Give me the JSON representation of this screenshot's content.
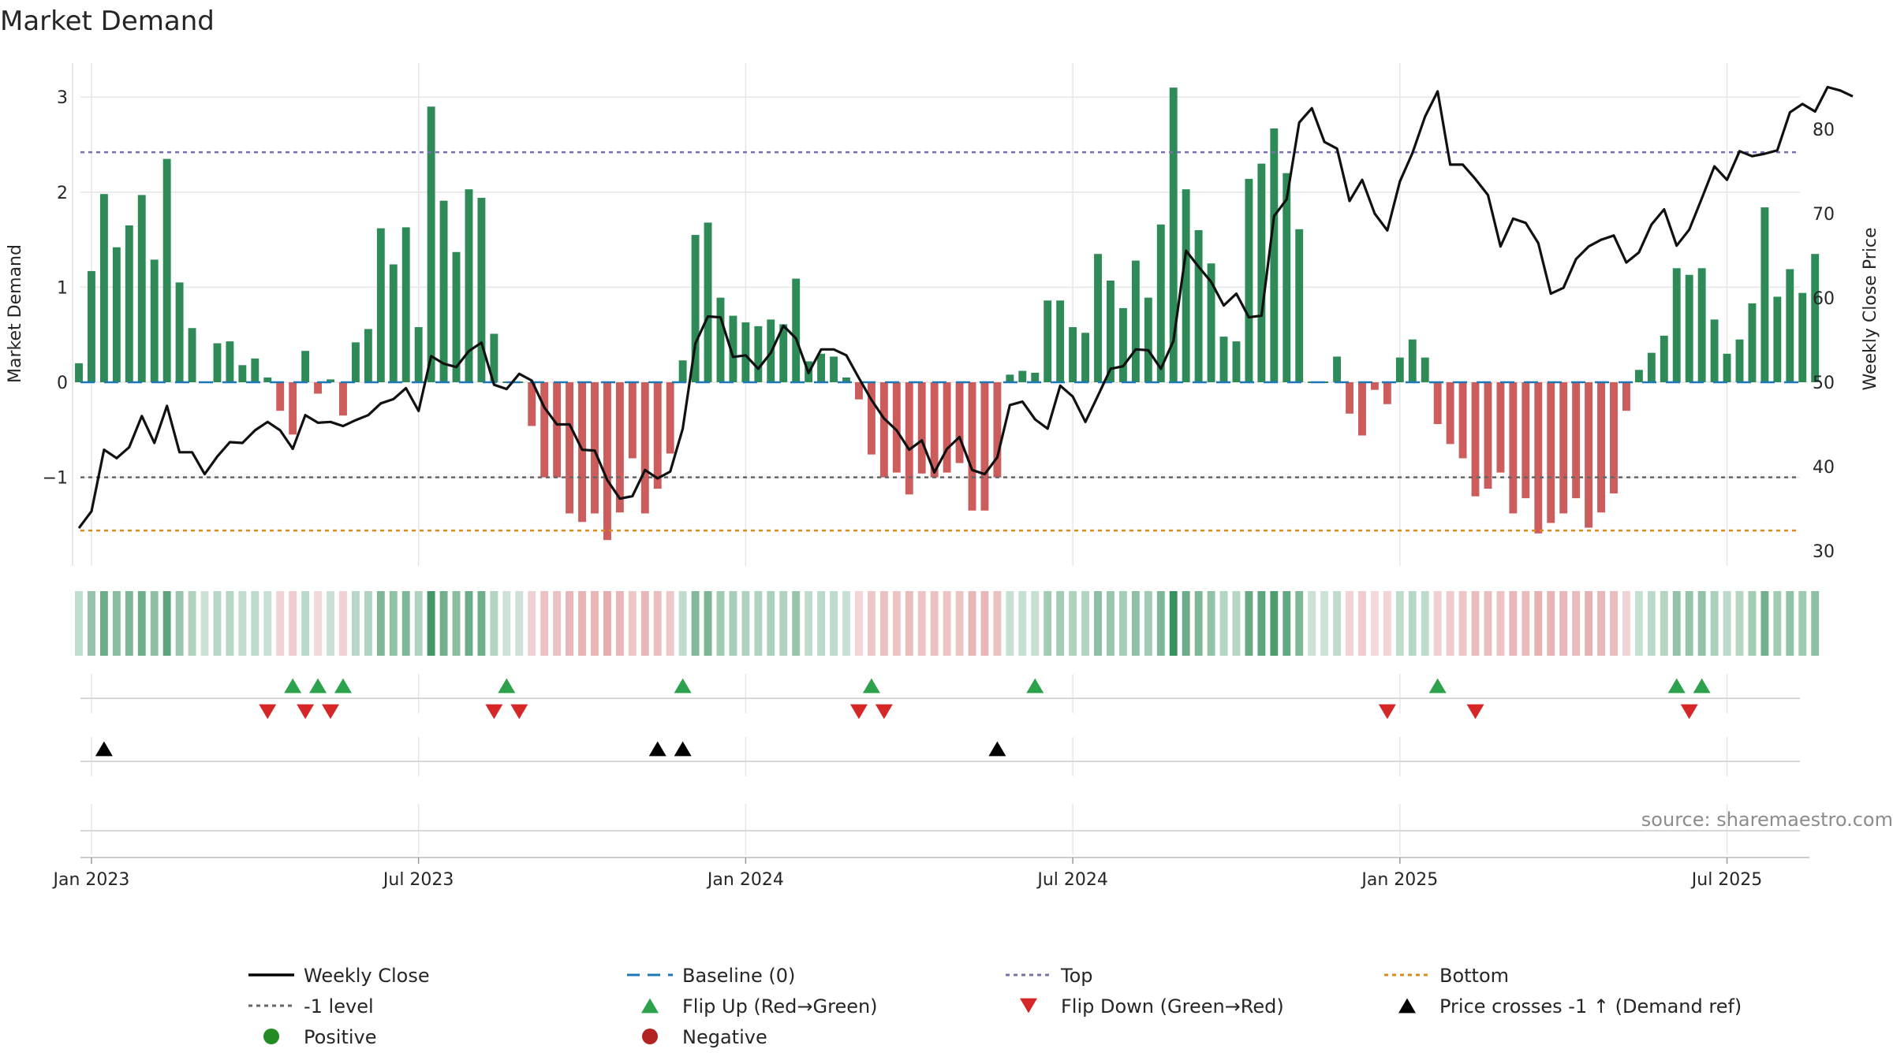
{
  "chart_data": {
    "type": "bar+line",
    "title": "Market Demand",
    "ylabel_left": "Market Demand",
    "ylabel_right": "Weekly Close Price",
    "ylim_left": [
      -2.0,
      3.4
    ],
    "ylim_right": [
      29.2,
      88.5
    ],
    "left_ticks": [
      {
        "v": 3,
        "label": "3"
      },
      {
        "v": 2,
        "label": "2"
      },
      {
        "v": 1,
        "label": "1"
      },
      {
        "v": 0,
        "label": "0"
      },
      {
        "v": -1,
        "label": "−1"
      }
    ],
    "right_ticks": [
      {
        "v": 80,
        "label": "80"
      },
      {
        "v": 70,
        "label": "70"
      },
      {
        "v": 60,
        "label": "60"
      },
      {
        "v": 50,
        "label": "50"
      },
      {
        "v": 40,
        "label": "40"
      },
      {
        "v": 30,
        "label": "30"
      }
    ],
    "x_ticks": [
      {
        "i": 1,
        "label": "Jan 2023"
      },
      {
        "i": 27,
        "label": "Jul 2023"
      },
      {
        "i": 53,
        "label": "Jan 2024"
      },
      {
        "i": 79,
        "label": "Jul 2024"
      },
      {
        "i": 105,
        "label": "Jan 2025"
      },
      {
        "i": 131,
        "label": "Jul 2025"
      }
    ],
    "reference_levels": {
      "top": 2.42,
      "minus_one": -1.0,
      "bottom": -1.56,
      "baseline": 0
    },
    "demand": [
      0.2,
      1.17,
      1.98,
      1.42,
      1.65,
      1.97,
      1.29,
      2.35,
      1.05,
      0.57,
      0,
      0.41,
      0.43,
      0.18,
      0.25,
      0.05,
      -0.3,
      -0.55,
      0.33,
      -0.12,
      0.03,
      -0.35,
      0.42,
      0.56,
      1.62,
      1.24,
      1.63,
      0.58,
      2.9,
      1.91,
      1.37,
      2.03,
      1.94,
      0.51,
      0,
      0,
      -0.46,
      -1.0,
      -1.0,
      -1.38,
      -1.47,
      -1.38,
      -1.66,
      -1.37,
      -0.8,
      -1.38,
      -1.12,
      -0.75,
      0.23,
      1.55,
      1.68,
      0.89,
      0.7,
      0.63,
      0.59,
      0.66,
      0.61,
      1.09,
      0.22,
      0.3,
      0.27,
      0.05,
      -0.18,
      -0.76,
      -1.0,
      -0.95,
      -1.18,
      -0.96,
      -1.0,
      -0.95,
      -0.85,
      -1.35,
      -1.35,
      -1.0,
      0.08,
      0.12,
      0.1,
      0.86,
      0.86,
      0.58,
      0.52,
      1.35,
      1.07,
      0.78,
      1.28,
      0.89,
      1.66,
      3.1,
      2.03,
      1.6,
      1.25,
      0.48,
      0.43,
      2.14,
      2.3,
      2.67,
      2.2,
      1.61,
      0.0,
      0.0,
      0.27,
      -0.33,
      -0.56,
      -0.08,
      -0.23,
      0.26,
      0.45,
      0.26,
      -0.44,
      -0.65,
      -0.8,
      -1.2,
      -1.12,
      -0.95,
      -1.38,
      -1.22,
      -1.59,
      -1.48,
      -1.38,
      -1.22,
      -1.53,
      -1.37,
      -1.17,
      -0.3,
      0.13,
      0.31,
      0.49,
      1.2,
      1.13,
      1.2,
      0.66,
      0.3,
      0.45,
      0.83,
      1.84,
      0.9,
      1.19,
      0.94,
      1.35
    ],
    "price": [
      32.7,
      34.7,
      42.0,
      41.0,
      42.3,
      46.0,
      42.8,
      47.2,
      41.7,
      41.7,
      39.1,
      41.2,
      42.9,
      42.8,
      44.3,
      45.3,
      44.3,
      42.1,
      46.1,
      45.2,
      45.3,
      44.8,
      45.5,
      46.1,
      47.5,
      48.0,
      49.3,
      46.6,
      53.1,
      52.2,
      51.8,
      53.7,
      54.7,
      49.7,
      49.2,
      51.0,
      50.2,
      47.0,
      45.0,
      45.0,
      42.0,
      41.9,
      38.4,
      36.2,
      36.5,
      39.6,
      38.6,
      39.4,
      44.5,
      54.6,
      57.8,
      57.7,
      53.0,
      53.2,
      51.6,
      53.5,
      56.7,
      55.2,
      51.1,
      53.9,
      53.9,
      53.2,
      50.5,
      47.9,
      45.7,
      44.3,
      42.0,
      43.1,
      39.3,
      42.1,
      43.5,
      39.6,
      39.1,
      41.1,
      47.3,
      47.7,
      45.6,
      44.5,
      49.6,
      48.3,
      45.3,
      48.4,
      51.6,
      51.9,
      53.9,
      53.8,
      51.6,
      54.9,
      65.6,
      63.7,
      61.9,
      59.1,
      60.5,
      57.7,
      57.9,
      69.7,
      71.7,
      80.8,
      82.5,
      78.5,
      77.7,
      71.5,
      74.0,
      70.0,
      68.0,
      73.8,
      77.2,
      81.5,
      84.5,
      75.8,
      75.8,
      74.1,
      72.2,
      66.1,
      69.4,
      68.9,
      66.5,
      60.5,
      61.2,
      64.6,
      66.1,
      66.9,
      67.4,
      64.2,
      65.4,
      68.7,
      70.5,
      66.2,
      68.1,
      71.8,
      75.6,
      74.0,
      77.4,
      76.8,
      77.1,
      77.5,
      82.0,
      83.0,
      82.1,
      85.0,
      84.6,
      83.9
    ],
    "heat_strip": "per-week demand intensity (green = positive, red = negative)",
    "flip_up_weeks": [
      17,
      19,
      21,
      34,
      48,
      63,
      76,
      108,
      127,
      129
    ],
    "flip_down_weeks": [
      15,
      18,
      20,
      33,
      35,
      62,
      64,
      104,
      111,
      128
    ],
    "price_cross_weeks": [
      2,
      46,
      48,
      73
    ],
    "source": "source: sharemaestro.com",
    "legend": [
      {
        "label": "Weekly Close",
        "kind": "line",
        "color": "#000000"
      },
      {
        "label": "Baseline (0)",
        "kind": "dash",
        "color": "#1f77b4"
      },
      {
        "label": "Top",
        "kind": "dot",
        "color": "#7b6fb0"
      },
      {
        "label": "Bottom",
        "kind": "dot",
        "color": "#d98c1a"
      },
      {
        "label": "-1 level",
        "kind": "dot",
        "color": "#666666"
      },
      {
        "label": "Flip Up (Red→Green)",
        "kind": "tri-up",
        "color": "#2ca24c"
      },
      {
        "label": "Flip Down (Green→Red)",
        "kind": "tri-down",
        "color": "#d62728"
      },
      {
        "label": "Price crosses -1 ↑ (Demand ref)",
        "kind": "tri-up",
        "color": "#000000"
      },
      {
        "label": "Positive",
        "kind": "circle",
        "color": "#228b22"
      },
      {
        "label": "Negative",
        "kind": "circle",
        "color": "#b22222"
      }
    ],
    "colors": {
      "positive_bar": "#2e8b57",
      "negative_bar": "#cd5c5c",
      "price_line": "#111111",
      "flip_up": "#2ca24c",
      "flip_down": "#d62728",
      "cross": "#000000",
      "grid": "#e6e6e6"
    }
  }
}
